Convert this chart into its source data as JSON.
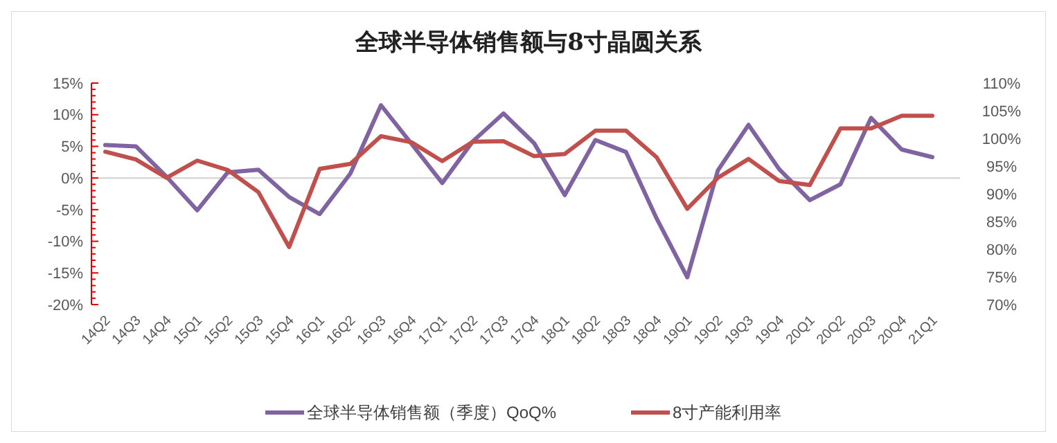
{
  "chart_data": {
    "type": "line",
    "title": "全球半导体销售额与8寸晶圆关系",
    "categories": [
      "14Q2",
      "14Q3",
      "14Q4",
      "15Q1",
      "15Q2",
      "15Q3",
      "15Q4",
      "16Q1",
      "16Q2",
      "16Q3",
      "16Q4",
      "17Q1",
      "17Q2",
      "17Q3",
      "17Q4",
      "18Q1",
      "18Q2",
      "18Q3",
      "18Q4",
      "19Q1",
      "19Q2",
      "19Q3",
      "19Q4",
      "20Q1",
      "20Q2",
      "20Q3",
      "20Q4",
      "21Q1"
    ],
    "series": [
      {
        "name": "全球半导体销售额（季度）QoQ%",
        "color": "#8064a2",
        "values": [
          5.2,
          5.0,
          0.2,
          -5.1,
          0.9,
          1.3,
          -3,
          -5.7,
          0.7,
          11.5,
          5.4,
          -0.8,
          5.8,
          10.2,
          5.5,
          -2.7,
          6.0,
          4.1,
          -6.4,
          -15.7,
          1.2,
          8.4,
          1.4,
          -3.5,
          -1.0,
          9.5,
          4.5,
          3.3
        ]
      },
      {
        "name": "8寸产能利用率",
        "color": "#c0504d",
        "axis": "y2",
        "values": [
          97.6,
          96.2,
          92.9,
          96.0,
          94.3,
          90.3,
          80.4,
          94.5,
          95.4,
          100.4,
          99.3,
          95.9,
          99.4,
          99.5,
          96.8,
          97.2,
          101.4,
          101.4,
          96.6,
          87.3,
          92.9,
          96.3,
          92.3,
          91.6,
          101.8,
          101.8,
          104.1,
          104.1
        ]
      }
    ],
    "ylim": [
      -20,
      15
    ],
    "yticks": [
      {
        "value": -20,
        "label": "-20%"
      },
      {
        "value": -15,
        "label": "-15%"
      },
      {
        "value": -10,
        "label": "-10%"
      },
      {
        "value": -5,
        "label": "-5%"
      },
      {
        "value": 0,
        "label": "0%"
      },
      {
        "value": 5,
        "label": "5%"
      },
      {
        "value": 10,
        "label": "10%"
      },
      {
        "value": 15,
        "label": "15%"
      }
    ],
    "y2lim": [
      70,
      110
    ],
    "y2ticks": [
      {
        "value": 70,
        "label": "70%"
      },
      {
        "value": 75,
        "label": "75%"
      },
      {
        "value": 80,
        "label": "80%"
      },
      {
        "value": 85,
        "label": "85%"
      },
      {
        "value": 90,
        "label": "90%"
      },
      {
        "value": 95,
        "label": "95%"
      },
      {
        "value": 100,
        "label": "100%"
      },
      {
        "value": 105,
        "label": "105%"
      },
      {
        "value": 110,
        "label": "110%"
      }
    ],
    "legend": "bottom",
    "marker": "none",
    "line_style": "solid"
  }
}
